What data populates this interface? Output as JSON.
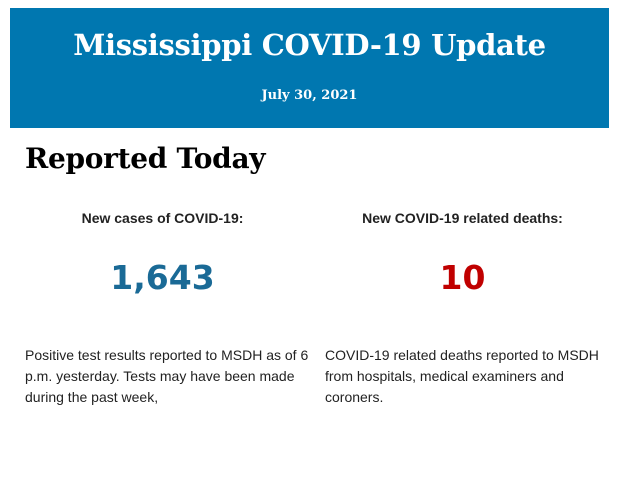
{
  "header": {
    "title": "Mississippi COVID-19 Update",
    "date": "July 30, 2021",
    "background_color": "#0077b0"
  },
  "section": {
    "title": "Reported Today"
  },
  "cases": {
    "label": "New cases of COVID-19:",
    "value": "1,643",
    "color": "#1a6a96",
    "description": "Positive test results reported to MSDH as of 6 p.m. yesterday. Tests may have been made during the past week,"
  },
  "deaths": {
    "label": "New COVID-19 related deaths:",
    "value": "10",
    "color": "#c00000",
    "description": "COVID-19 related deaths reported to MSDH from hospitals, medical examiners and coroners."
  }
}
